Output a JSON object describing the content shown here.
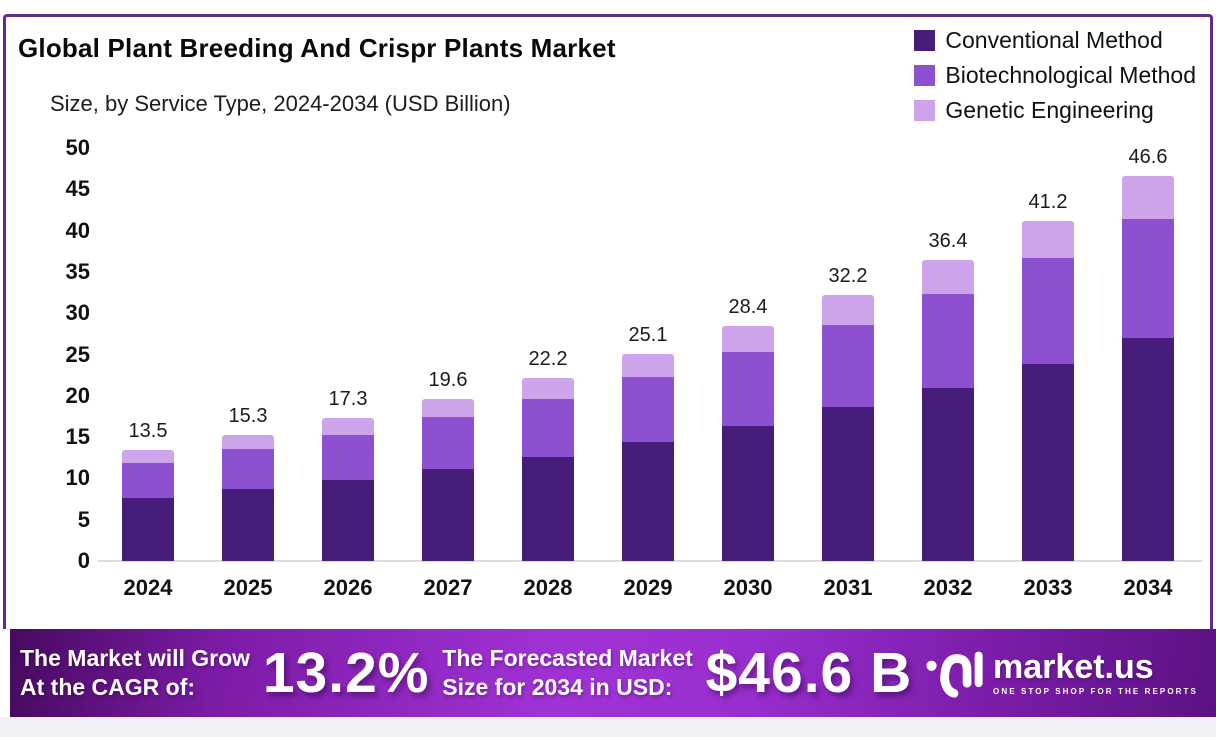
{
  "title": "Global Plant Breeding And Crispr Plants Market",
  "subtitle": "Size, by Service Type, 2024-2034 (USD Billion)",
  "legend": [
    {
      "label": "Conventional Method",
      "color": "#471d7c"
    },
    {
      "label": "Biotechnological Method",
      "color": "#8d50d0"
    },
    {
      "label": "Genetic Engineering",
      "color": "#cda4e9"
    }
  ],
  "chart_data": {
    "type": "bar",
    "stacked": true,
    "title": "Global Plant Breeding And Crispr Plants Market Size, by Service Type, 2024-2034 (USD Billion)",
    "categories": [
      "2024",
      "2025",
      "2026",
      "2027",
      "2028",
      "2029",
      "2030",
      "2031",
      "2032",
      "2033",
      "2034"
    ],
    "series": [
      {
        "name": "Conventional Method",
        "color": "#471d7c",
        "values": [
          7.6,
          8.7,
          9.8,
          11.1,
          12.6,
          14.4,
          16.4,
          18.6,
          21.0,
          23.9,
          27.0
        ]
      },
      {
        "name": "Biotechnological Method",
        "color": "#8d50d0",
        "values": [
          4.3,
          4.9,
          5.5,
          6.3,
          7.0,
          7.9,
          8.9,
          10.0,
          11.3,
          12.8,
          14.4
        ]
      },
      {
        "name": "Genetic Engineering",
        "color": "#cda4e9",
        "values": [
          1.6,
          1.7,
          2.0,
          2.2,
          2.6,
          2.8,
          3.1,
          3.6,
          4.1,
          4.5,
          5.2
        ]
      }
    ],
    "totals": [
      13.5,
      15.3,
      17.3,
      19.6,
      22.2,
      25.1,
      28.4,
      32.2,
      36.4,
      41.2,
      46.6
    ],
    "xlabel": "",
    "ylabel": "",
    "ylim": [
      0,
      50
    ],
    "yticks": [
      0,
      5,
      10,
      15,
      20,
      25,
      30,
      35,
      40,
      45,
      50
    ],
    "grid": false,
    "legend_position": "top-right"
  },
  "banner": {
    "cagr_label_line1": "The Market will Grow",
    "cagr_label_line2": "At the CAGR of:",
    "cagr_value": "13.2%",
    "forecast_label_line1": "The Forecasted Market",
    "forecast_label_line2": "Size for 2034 in USD:",
    "forecast_value": "$46.6 B",
    "brand": "market.us",
    "brand_tagline": "ONE STOP SHOP FOR THE REPORTS"
  }
}
